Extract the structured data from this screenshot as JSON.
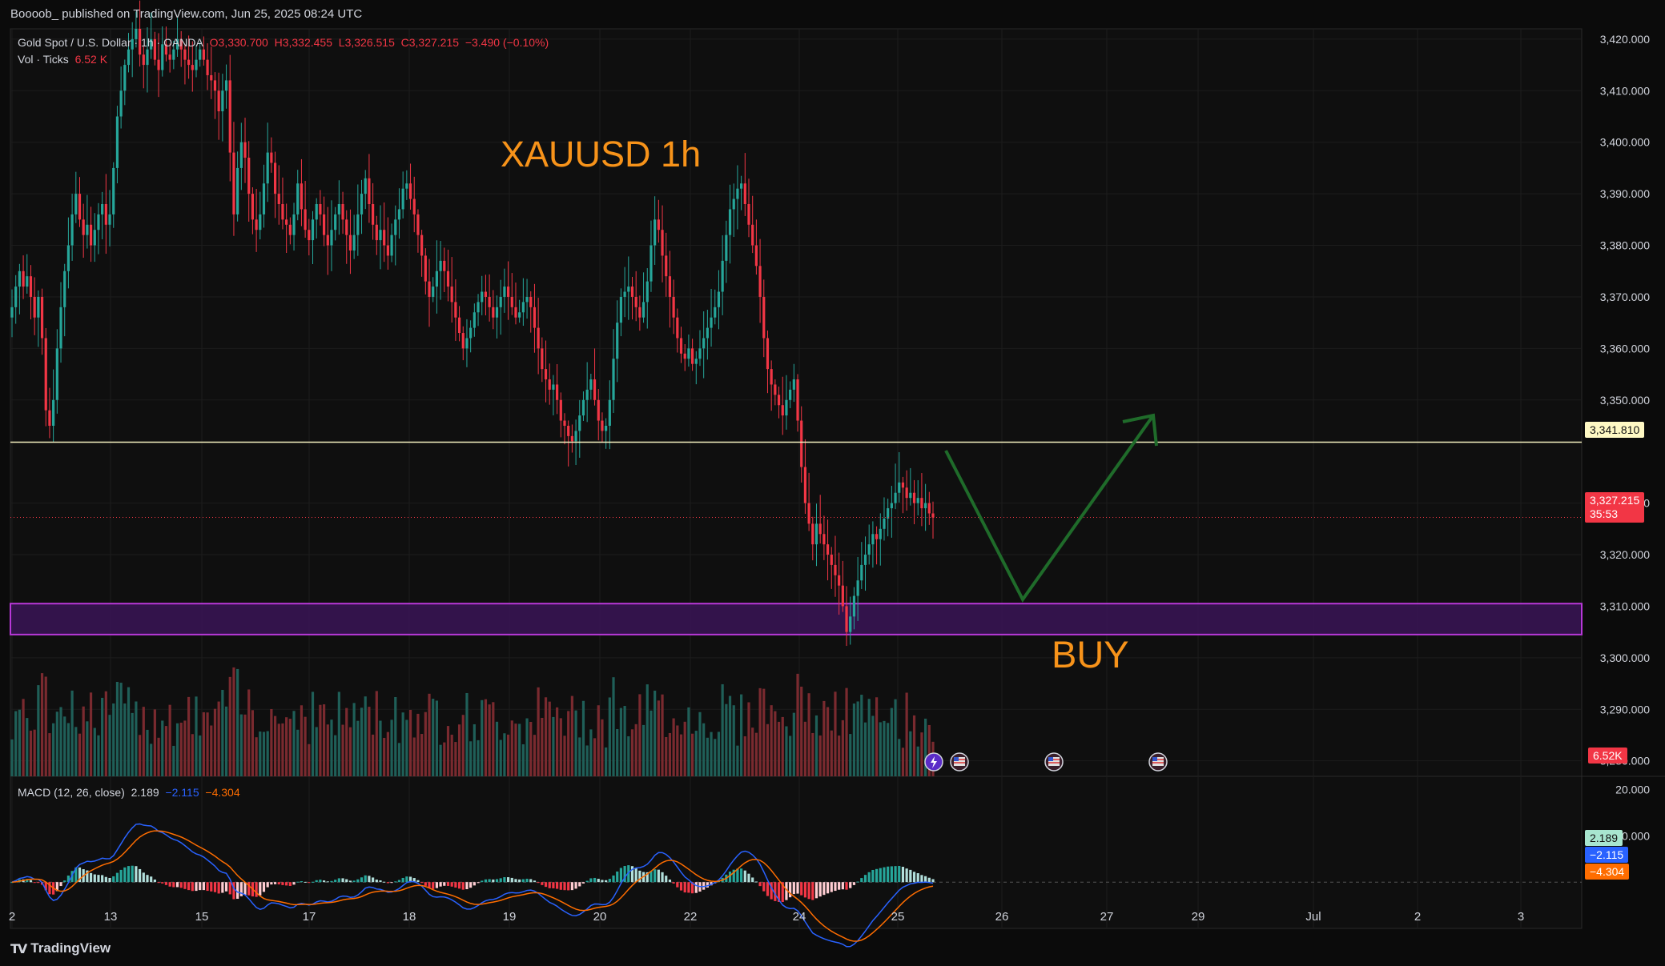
{
  "publish_line": "Boooob_ published on TradingView.com, Jun 25, 2025 08:24 UTC",
  "footer_brand": "TradingView",
  "legend": {
    "symbol": "Gold Spot / U.S. Dollar · 1h · OANDA",
    "open": "O3,330.700",
    "high": "H3,332.455",
    "low": "L3,326.515",
    "close": "C3,327.215",
    "change": "−3.490 (−0.10%)",
    "vol_label": "Vol · Ticks",
    "vol_value": "6.52 K",
    "macd_label": "MACD (12, 26, close)",
    "macd_hist": "2.189",
    "macd_line": "−2.115",
    "macd_signal": "−4.304"
  },
  "annotations": {
    "title": "XAUUSD 1h",
    "signal": "BUY"
  },
  "price_tags": {
    "resistance": "3,341.810",
    "last": "3,327.215",
    "countdown": "35:53",
    "volume": "6.52K",
    "macd_hist": "2.189",
    "macd_line": "−2.115",
    "macd_signal": "−4.304"
  },
  "colors": {
    "up": "#26a69a",
    "down": "#f23645",
    "zone": "#b838d8",
    "arrow": "#1f6b2a",
    "text_orange": "#f7931a",
    "macd_line": "#2962ff",
    "macd_signal": "#ff6d00"
  },
  "chart_data": {
    "type": "candlestick",
    "title": "XAUUSD 1h",
    "price_axis": {
      "ticks": [
        "3,420.000",
        "3,410.000",
        "3,400.000",
        "3,390.000",
        "3,380.000",
        "3,370.000",
        "3,360.000",
        "3,350.000",
        "3,330.000",
        "3,320.000",
        "3,310.000",
        "3,300.000",
        "3,290.000",
        "3,280.000"
      ],
      "tick_values": [
        3420,
        3410,
        3400,
        3390,
        3380,
        3370,
        3360,
        3350,
        3330,
        3320,
        3310,
        3300,
        3290,
        3280
      ],
      "range": [
        3277,
        3422
      ]
    },
    "macd_axis": {
      "ticks": [
        "20.000",
        "10.000"
      ],
      "tick_values": [
        20,
        10
      ],
      "range": [
        -10,
        22
      ]
    },
    "time_axis": [
      "2",
      "13",
      "15",
      "17",
      "18",
      "19",
      "20",
      "22",
      "24",
      "25",
      "26",
      "27",
      "29",
      "Jul",
      "2",
      "3"
    ],
    "key_levels": {
      "resistance": 3341.81,
      "last_price": 3327.215,
      "demand_zone": [
        3304.5,
        3310.5
      ]
    },
    "closes": [
      3368,
      3372,
      3375,
      3372,
      3374,
      3370,
      3366,
      3370,
      3362,
      3348,
      3345,
      3350,
      3360,
      3368,
      3375,
      3380,
      3386,
      3390,
      3385,
      3382,
      3384,
      3380,
      3383,
      3386,
      3388,
      3384,
      3386,
      3395,
      3405,
      3410,
      3415,
      3418,
      3420,
      3422,
      3417,
      3415,
      3418,
      3420,
      3416,
      3414,
      3419,
      3417,
      3416,
      3418,
      3420,
      3418,
      3416,
      3415,
      3414,
      3416,
      3418,
      3416,
      3413,
      3412,
      3410,
      3406,
      3410,
      3412,
      3398,
      3386,
      3395,
      3400,
      3397,
      3390,
      3385,
      3383,
      3386,
      3392,
      3398,
      3396,
      3390,
      3388,
      3385,
      3384,
      3382,
      3386,
      3392,
      3387,
      3383,
      3381,
      3385,
      3388,
      3386,
      3382,
      3380,
      3383,
      3386,
      3388,
      3385,
      3382,
      3379,
      3382,
      3386,
      3390,
      3393,
      3388,
      3384,
      3381,
      3383,
      3380,
      3378,
      3382,
      3385,
      3387,
      3391,
      3392,
      3389,
      3386,
      3382,
      3378,
      3373,
      3370,
      3372,
      3375,
      3377,
      3375,
      3372,
      3369,
      3366,
      3363,
      3360,
      3362,
      3364,
      3367,
      3369,
      3371,
      3370,
      3368,
      3366,
      3368,
      3370,
      3372,
      3370,
      3368,
      3366,
      3367,
      3369,
      3370,
      3368,
      3364,
      3360,
      3356,
      3354,
      3352,
      3353,
      3350,
      3346,
      3345,
      3343,
      3342,
      3344,
      3347,
      3350,
      3352,
      3354,
      3350,
      3346,
      3344,
      3345,
      3350,
      3358,
      3365,
      3370,
      3371,
      3372,
      3370,
      3368,
      3366,
      3369,
      3373,
      3380,
      3385,
      3383,
      3378,
      3374,
      3370,
      3366,
      3362,
      3359,
      3358,
      3360,
      3357,
      3358,
      3360,
      3362,
      3364,
      3366,
      3368,
      3371,
      3377,
      3382,
      3387,
      3389,
      3391,
      3392,
      3388,
      3384,
      3380,
      3376,
      3370,
      3362,
      3356,
      3353,
      3351,
      3349,
      3347,
      3350,
      3352,
      3354,
      3346,
      3337,
      3330,
      3326,
      3322,
      3326,
      3324,
      3322,
      3320,
      3318,
      3316,
      3314,
      3310,
      3305,
      3308,
      3312,
      3315,
      3318,
      3320,
      3322,
      3324,
      3323,
      3325,
      3327,
      3329,
      3330,
      3332,
      3334,
      3333,
      3331,
      3332,
      3330,
      3331,
      3329,
      3330,
      3328,
      3327.2
    ]
  }
}
